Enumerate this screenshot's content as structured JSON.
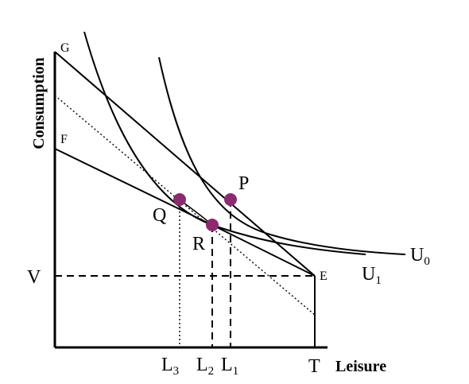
{
  "axes": {
    "y_title": "Consumption",
    "x_title": "Leisure"
  },
  "intercepts": {
    "g": "G",
    "f": "F"
  },
  "points": {
    "p": "P",
    "q": "Q",
    "r": "R",
    "e": "E"
  },
  "levels": {
    "v": "V"
  },
  "curves": {
    "u0": {
      "base": "U",
      "sub": "0"
    },
    "u1": {
      "base": "U",
      "sub": "1"
    }
  },
  "x_ticks": {
    "l3": {
      "base": "L",
      "sub": "3"
    },
    "l2": {
      "base": "L",
      "sub": "2"
    },
    "l1": {
      "base": "L",
      "sub": "1"
    },
    "t": "T"
  },
  "colors": {
    "marker": "#8b2a6e",
    "line": "#000000"
  }
}
